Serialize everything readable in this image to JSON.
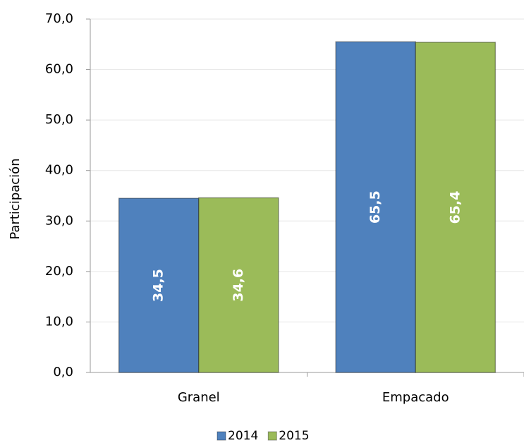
{
  "chart_data": {
    "type": "bar",
    "y_label": "Participación",
    "categories": [
      "Granel",
      "Empacado"
    ],
    "series": [
      {
        "name": "2014",
        "color": "#4f81bd",
        "values": [
          34.5,
          65.5
        ],
        "value_labels": [
          "34,5",
          "65,5"
        ]
      },
      {
        "name": "2015",
        "color": "#9bbb59",
        "values": [
          34.6,
          65.4
        ],
        "value_labels": [
          "34,6",
          "65,4"
        ]
      }
    ],
    "ylim": [
      0,
      70
    ],
    "yticks": [
      {
        "value": 0,
        "label": "0,0"
      },
      {
        "value": 10,
        "label": "10,0"
      },
      {
        "value": 20,
        "label": "20,0"
      },
      {
        "value": 30,
        "label": "30,0"
      },
      {
        "value": 40,
        "label": "40,0"
      },
      {
        "value": 50,
        "label": "50,0"
      },
      {
        "value": 60,
        "label": "60,0"
      },
      {
        "value": 70,
        "label": "70,0"
      }
    ],
    "grid": true,
    "legend": "bottom"
  }
}
